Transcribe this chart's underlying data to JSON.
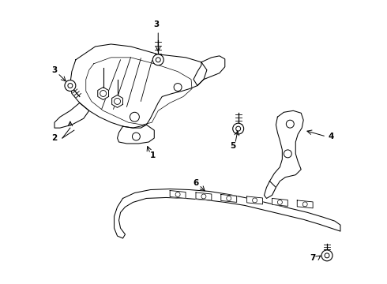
{
  "background_color": "#ffffff",
  "line_color": "#000000",
  "fig_width": 4.9,
  "fig_height": 3.6,
  "dpi": 100,
  "label_fontsize": 7.5
}
